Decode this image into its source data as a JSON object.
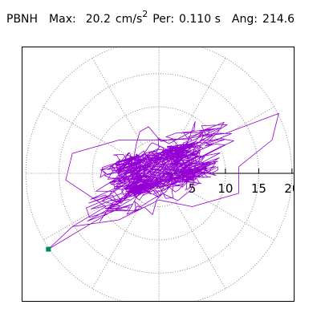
{
  "header": {
    "station": "PBNH",
    "max_label": "Max:",
    "max_value": "20.2",
    "max_unit": "cm/s",
    "max_unit_exp": "2",
    "per_label": "Per:",
    "per_value": "0.110 s",
    "ang_label": "Ang:",
    "ang_value": "214.6"
  },
  "chart_data": {
    "type": "polar-hodogram",
    "title": "",
    "max_amplitude": 20.2,
    "max_amplitude_unit": "cm/s²",
    "period_s": 0.11,
    "angle_deg": 214.6,
    "radial_range": [
      0,
      20.5
    ],
    "radial_rings": [
      5,
      10,
      15,
      20
    ],
    "tick_labels": [
      "5",
      "10",
      "15",
      "20"
    ],
    "angular_grid_step_deg": 30,
    "grid": true,
    "series": [
      {
        "color": "#9400D3",
        "end_marker_color": "#008B5B",
        "end_point": {
          "x": -16.6,
          "y": -11.4
        },
        "envelope": [
          {
            "x": -16.6,
            "y": -11.4
          },
          {
            "x": -13,
            "y": -8
          },
          {
            "x": -8,
            "y": -5
          },
          {
            "x": -14,
            "y": -1
          },
          {
            "x": -13,
            "y": 3
          },
          {
            "x": -6,
            "y": 5
          },
          {
            "x": 2,
            "y": 5
          },
          {
            "x": 10,
            "y": 6
          },
          {
            "x": 18,
            "y": 9
          },
          {
            "x": 17,
            "y": 5
          },
          {
            "x": 12,
            "y": 1
          },
          {
            "x": 12,
            "y": -3
          },
          {
            "x": 5,
            "y": -5
          },
          {
            "x": 0,
            "y": -4
          },
          {
            "x": -6,
            "y": -7
          },
          {
            "x": -13,
            "y": -8
          }
        ]
      }
    ]
  },
  "colors": {
    "trace": "#9400D3",
    "end_marker": "#008B5B",
    "grid": "#8c8c8c",
    "axis": "#000000"
  }
}
